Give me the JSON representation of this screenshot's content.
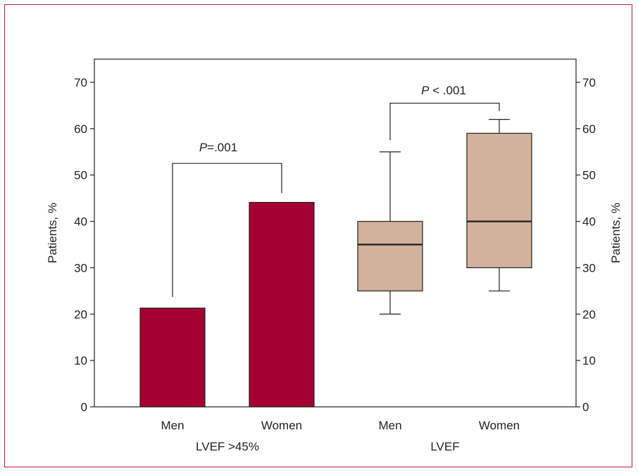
{
  "chart_data": {
    "type": "bar+boxplot",
    "ylabel_left": "Patients, %",
    "ylabel_right": "Patients, %",
    "ylim": [
      0,
      75
    ],
    "yticks": [
      0,
      10,
      20,
      30,
      40,
      50,
      60,
      70
    ],
    "groups": [
      {
        "label": "LVEF >45%",
        "type": "bar",
        "categories": [
          "Men",
          "Women"
        ],
        "values": [
          21.3,
          44.1
        ],
        "color": "#a50034",
        "comparison": {
          "prefix": "P",
          "text": "=.001"
        }
      },
      {
        "label": "LVEF",
        "type": "boxplot",
        "categories": [
          "Men",
          "Women"
        ],
        "boxes": [
          {
            "min": 20,
            "q1": 25,
            "median": 35,
            "q3": 40,
            "max": 55
          },
          {
            "min": 25,
            "q1": 30,
            "median": 40,
            "q3": 59,
            "max": 62
          }
        ],
        "color": "#d3b29c",
        "comparison": {
          "prefix": "P",
          "text": " < .001"
        }
      }
    ]
  },
  "colors": {
    "frame": "#b5174a",
    "bar": "#a50034",
    "box": "#d3b29c"
  }
}
